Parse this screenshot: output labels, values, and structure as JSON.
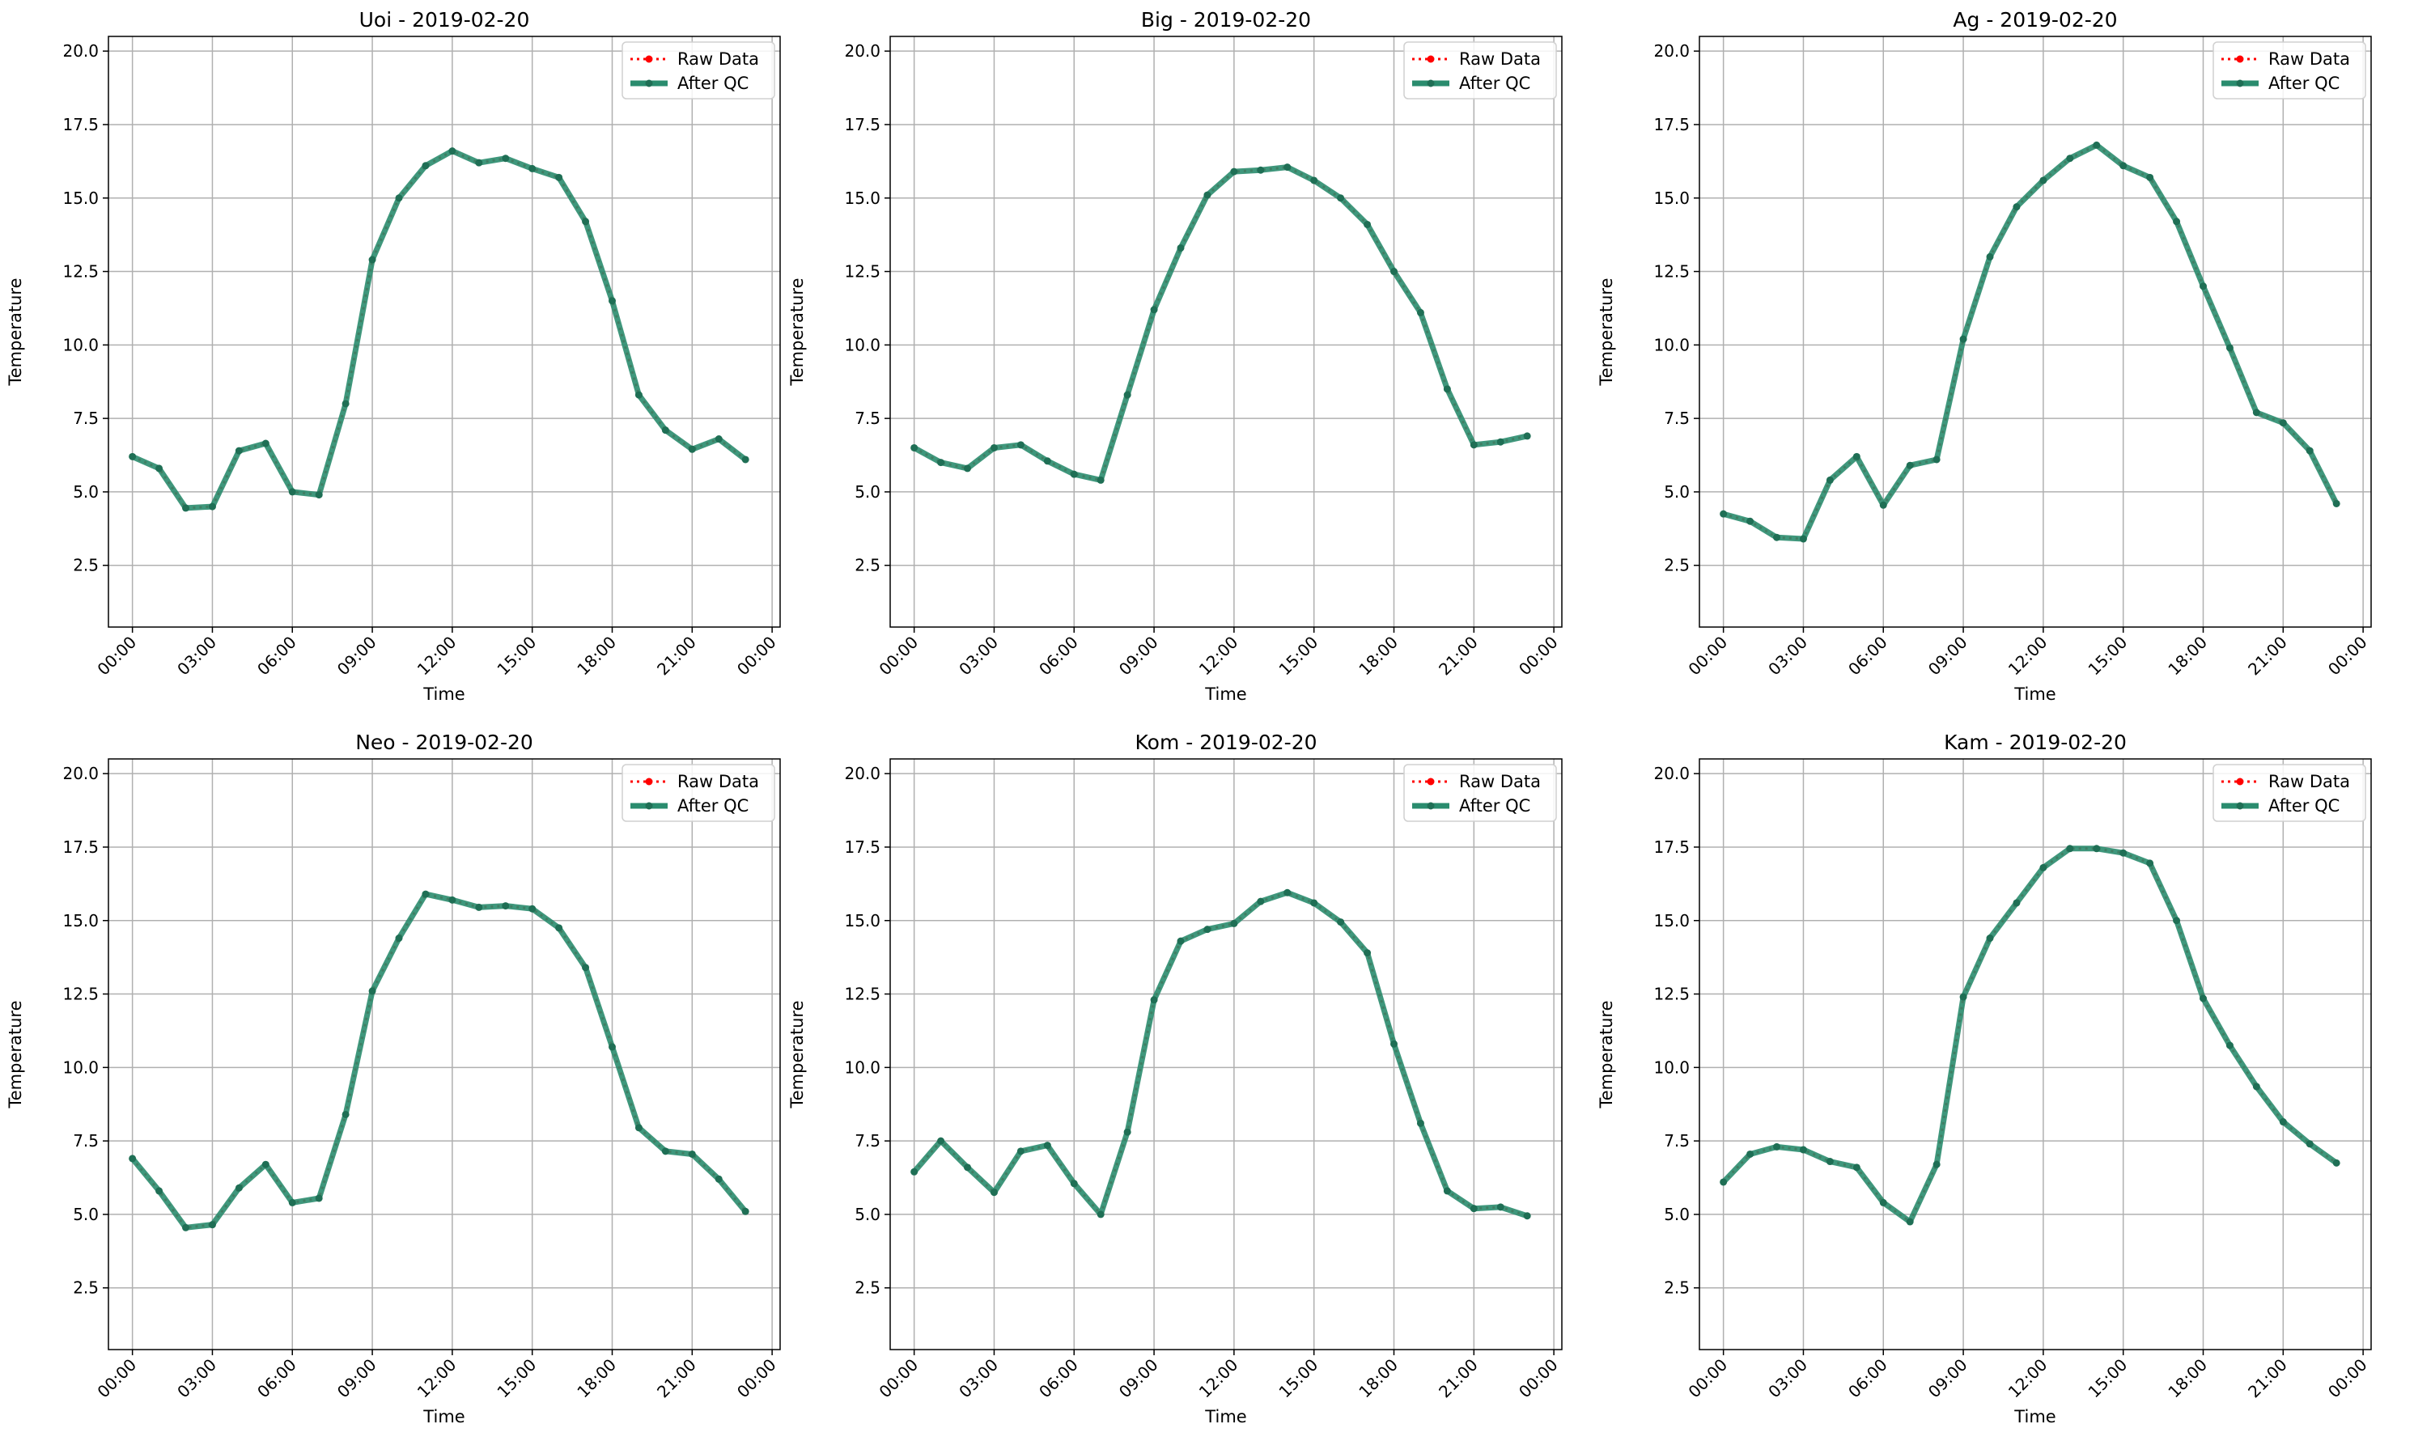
{
  "figure": {
    "y_axis_label": "Temperature",
    "x_axis_label": "Time",
    "ylim": [
      0.4,
      20.5
    ],
    "y_ticks": [
      2.5,
      5.0,
      7.5,
      10.0,
      12.5,
      15.0,
      17.5,
      20.0
    ],
    "x_ticks": [
      "00:00",
      "03:00",
      "06:00",
      "09:00",
      "12:00",
      "15:00",
      "18:00",
      "21:00",
      "00:00"
    ],
    "grid": true,
    "legend_placement": "top-right",
    "legend": [
      "Raw Data",
      "After QC"
    ],
    "colors": {
      "raw": "#ff0000",
      "qc": "#2a8c6e",
      "qc_marker": "#1f6f55",
      "grid": "#b0b0b0"
    }
  },
  "chart_data": [
    {
      "type": "line",
      "title": "Uoi - 2019-02-20",
      "xlabel": "Time",
      "ylabel": "Temperature",
      "x_hours": [
        0,
        1,
        2,
        3,
        4,
        5,
        6,
        7,
        8,
        9,
        10,
        11,
        12,
        13,
        14,
        15,
        16,
        17,
        18,
        19,
        20,
        21,
        22,
        23
      ],
      "series": [
        {
          "name": "Raw Data",
          "values": [
            6.2,
            5.8,
            4.45,
            4.5,
            6.4,
            6.65,
            5.0,
            4.9,
            8.0,
            12.9,
            15.0,
            16.1,
            16.6,
            16.2,
            16.35,
            16.0,
            15.7,
            14.2,
            11.5,
            8.3,
            7.1,
            6.45,
            6.8,
            6.1
          ]
        },
        {
          "name": "After QC",
          "values": [
            6.2,
            5.8,
            4.45,
            4.5,
            6.4,
            6.65,
            5.0,
            4.9,
            8.0,
            12.9,
            15.0,
            16.1,
            16.6,
            16.2,
            16.35,
            16.0,
            15.7,
            14.2,
            11.5,
            8.3,
            7.1,
            6.45,
            6.8,
            6.1
          ]
        }
      ]
    },
    {
      "type": "line",
      "title": "Big - 2019-02-20",
      "xlabel": "Time",
      "ylabel": "Temperature",
      "x_hours": [
        0,
        1,
        2,
        3,
        4,
        5,
        6,
        7,
        8,
        9,
        10,
        11,
        12,
        13,
        14,
        15,
        16,
        17,
        18,
        19,
        20,
        21,
        22,
        23
      ],
      "series": [
        {
          "name": "Raw Data",
          "values": [
            6.5,
            6.0,
            5.8,
            6.5,
            6.6,
            6.05,
            5.6,
            5.4,
            8.3,
            11.2,
            13.3,
            15.1,
            15.9,
            15.95,
            16.05,
            15.6,
            15.0,
            14.1,
            12.5,
            11.1,
            8.5,
            6.6,
            6.7,
            6.9
          ]
        },
        {
          "name": "After QC",
          "values": [
            6.5,
            6.0,
            5.8,
            6.5,
            6.6,
            6.05,
            5.6,
            5.4,
            8.3,
            11.2,
            13.3,
            15.1,
            15.9,
            15.95,
            16.05,
            15.6,
            15.0,
            14.1,
            12.5,
            11.1,
            8.5,
            6.6,
            6.7,
            6.9
          ]
        }
      ]
    },
    {
      "type": "line",
      "title": "Ag - 2019-02-20",
      "xlabel": "Time",
      "ylabel": "Temperature",
      "x_hours": [
        0,
        1,
        2,
        3,
        4,
        5,
        6,
        7,
        8,
        9,
        10,
        11,
        12,
        13,
        14,
        15,
        16,
        17,
        18,
        19,
        20,
        21,
        22,
        23
      ],
      "series": [
        {
          "name": "Raw Data",
          "values": [
            4.25,
            4.0,
            3.45,
            3.4,
            5.4,
            6.2,
            4.55,
            5.9,
            6.1,
            10.2,
            13.0,
            14.7,
            15.6,
            16.35,
            16.8,
            16.1,
            15.7,
            14.2,
            12.0,
            9.9,
            7.7,
            7.35,
            6.4,
            4.6
          ]
        },
        {
          "name": "After QC",
          "values": [
            4.25,
            4.0,
            3.45,
            3.4,
            5.4,
            6.2,
            4.55,
            5.9,
            6.1,
            10.2,
            13.0,
            14.7,
            15.6,
            16.35,
            16.8,
            16.1,
            15.7,
            14.2,
            12.0,
            9.9,
            7.7,
            7.35,
            6.4,
            4.6
          ]
        }
      ]
    },
    {
      "type": "line",
      "title": "Neo - 2019-02-20",
      "xlabel": "Time",
      "ylabel": "Temperature",
      "x_hours": [
        0,
        1,
        2,
        3,
        4,
        5,
        6,
        7,
        8,
        9,
        10,
        11,
        12,
        13,
        14,
        15,
        16,
        17,
        18,
        19,
        20,
        21,
        22,
        23
      ],
      "series": [
        {
          "name": "Raw Data",
          "values": [
            6.9,
            5.8,
            4.55,
            4.65,
            5.9,
            6.7,
            5.4,
            5.55,
            8.4,
            12.6,
            14.4,
            15.9,
            15.7,
            15.45,
            15.5,
            15.4,
            14.75,
            13.4,
            10.7,
            7.95,
            7.15,
            7.05,
            6.2,
            5.1
          ]
        },
        {
          "name": "After QC",
          "values": [
            6.9,
            5.8,
            4.55,
            4.65,
            5.9,
            6.7,
            5.4,
            5.55,
            8.4,
            12.6,
            14.4,
            15.9,
            15.7,
            15.45,
            15.5,
            15.4,
            14.75,
            13.4,
            10.7,
            7.95,
            7.15,
            7.05,
            6.2,
            5.1
          ]
        }
      ]
    },
    {
      "type": "line",
      "title": "Kom - 2019-02-20",
      "xlabel": "Time",
      "ylabel": "Temperature",
      "x_hours": [
        0,
        1,
        2,
        3,
        4,
        5,
        6,
        7,
        8,
        9,
        10,
        11,
        12,
        13,
        14,
        15,
        16,
        17,
        18,
        19,
        20,
        21,
        22,
        23
      ],
      "series": [
        {
          "name": "Raw Data",
          "values": [
            6.45,
            7.5,
            6.6,
            5.75,
            7.15,
            7.35,
            6.05,
            5.0,
            7.8,
            12.3,
            14.3,
            14.7,
            14.9,
            15.65,
            15.95,
            15.6,
            14.95,
            13.9,
            10.8,
            8.1,
            5.8,
            5.2,
            5.25,
            4.95
          ]
        },
        {
          "name": "After QC",
          "values": [
            6.45,
            7.5,
            6.6,
            5.75,
            7.15,
            7.35,
            6.05,
            5.0,
            7.8,
            12.3,
            14.3,
            14.7,
            14.9,
            15.65,
            15.95,
            15.6,
            14.95,
            13.9,
            10.8,
            8.1,
            5.8,
            5.2,
            5.25,
            4.95
          ]
        }
      ]
    },
    {
      "type": "line",
      "title": "Kam - 2019-02-20",
      "xlabel": "Time",
      "ylabel": "Temperature",
      "x_hours": [
        0,
        1,
        2,
        3,
        4,
        5,
        6,
        7,
        8,
        9,
        10,
        11,
        12,
        13,
        14,
        15,
        16,
        17,
        18,
        19,
        20,
        21,
        22,
        23
      ],
      "series": [
        {
          "name": "Raw Data",
          "values": [
            6.1,
            7.05,
            7.3,
            7.2,
            6.8,
            6.6,
            5.4,
            4.75,
            6.7,
            12.4,
            14.4,
            15.6,
            16.8,
            17.45,
            17.45,
            17.3,
            16.95,
            15.0,
            12.35,
            10.75,
            9.35,
            8.15,
            7.4,
            6.75
          ]
        },
        {
          "name": "After QC",
          "values": [
            6.1,
            7.05,
            7.3,
            7.2,
            6.8,
            6.6,
            5.4,
            4.75,
            6.7,
            12.4,
            14.4,
            15.6,
            16.8,
            17.45,
            17.45,
            17.3,
            16.95,
            15.0,
            12.35,
            10.75,
            9.35,
            8.15,
            7.4,
            6.75
          ]
        }
      ]
    }
  ]
}
